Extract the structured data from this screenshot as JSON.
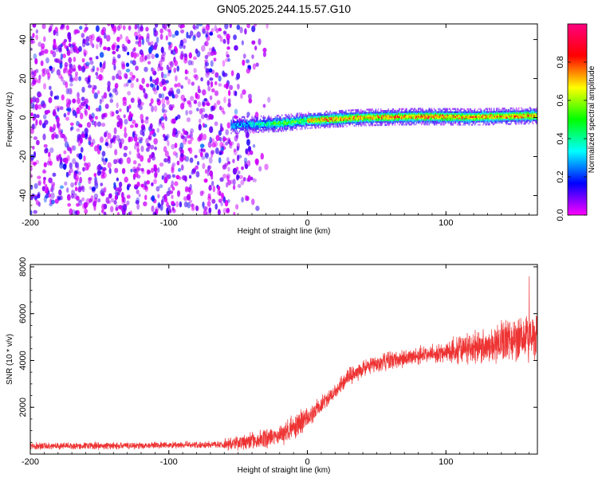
{
  "title": "GN05.2025.244.15.57.G10",
  "chart_data": [
    {
      "type": "heatmap",
      "xlabel": "Height of straight line (km)",
      "ylabel": "Frequency (Hz)",
      "xlim": [
        -200,
        166
      ],
      "ylim": [
        -50,
        48
      ],
      "xticks": [
        -200,
        -100,
        0,
        100
      ],
      "yticks": [
        -40,
        -20,
        0,
        20,
        40
      ],
      "colorbar": {
        "label": "Normalized spectral amplitude",
        "range": [
          0.0,
          1.0
        ],
        "ticks": [
          0.0,
          0.2,
          0.4,
          0.6,
          0.8
        ],
        "colors": [
          "#ff00ff",
          "#0000ff",
          "#00ffff",
          "#00ff00",
          "#ffff00",
          "#ff0000",
          "#ff0080"
        ]
      },
      "features": {
        "noise_region_x": [
          -200,
          -25
        ],
        "ridge_start_x": -55,
        "ridge_frequency_hz": [
          [
            -55,
            -4
          ],
          [
            -20,
            -3
          ],
          [
            0,
            -1.5
          ],
          [
            40,
            0
          ],
          [
            80,
            0.5
          ],
          [
            120,
            0.3
          ],
          [
            166,
            1
          ]
        ]
      }
    },
    {
      "type": "line",
      "xlabel": "Height of straight line (km)",
      "ylabel": "SNR (10 * v/v)",
      "xlim": [
        -200,
        166
      ],
      "ylim": [
        0,
        8100
      ],
      "xticks": [
        -200,
        -100,
        0,
        100
      ],
      "yticks": [
        2000,
        4000,
        6000,
        8000
      ],
      "series": [
        {
          "color": "#ee3333",
          "x": [
            -200,
            -150,
            -100,
            -60,
            -40,
            -20,
            0,
            10,
            20,
            30,
            40,
            50,
            60,
            80,
            100,
            110,
            120,
            130,
            140,
            150,
            160,
            166
          ],
          "y": [
            350,
            350,
            380,
            420,
            550,
            800,
            1500,
            2100,
            2700,
            3300,
            3650,
            3850,
            4000,
            4200,
            4350,
            4450,
            4550,
            4700,
            4800,
            4900,
            5000,
            5000
          ]
        }
      ]
    }
  ]
}
